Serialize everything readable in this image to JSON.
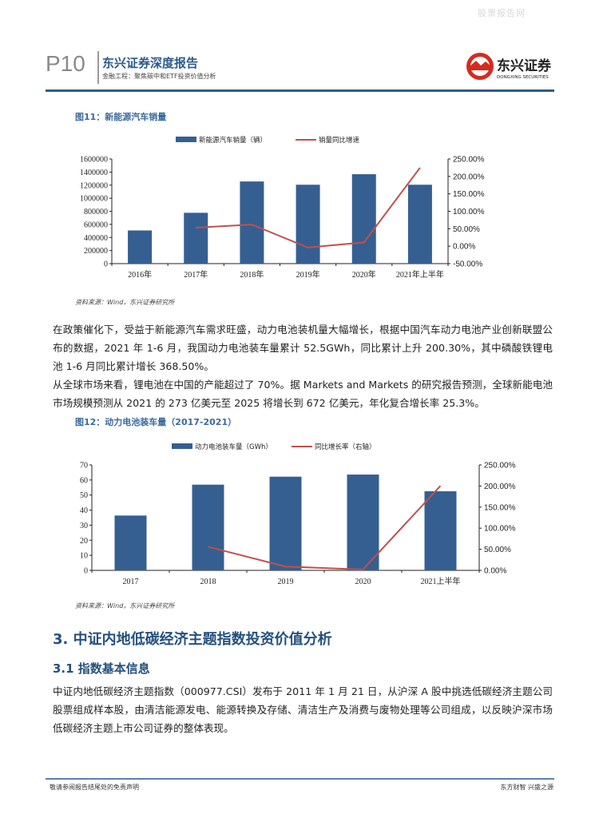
{
  "watermark": "股票报告网",
  "header": {
    "page": "P10",
    "title": "东兴证券深度报告",
    "subtitle": "金融工程：聚焦碳中和ETF投资价值分析",
    "logo_text": "东兴证券",
    "logo_sub": "DONGXING SECURITIES"
  },
  "figure11": {
    "title": "图11：新能源汽车销量",
    "source": "资料来源：Wind，东兴证券研究所"
  },
  "paragraph1": "在政策催化下，受益于新能源汽车需求旺盛，动力电池装机量大幅增长，根据中国汽车动力电池产业创新联盟公布的数据，2021 年 1-6 月，我国动力电池装车量累计 52.5GWh，同比累计上升 200.30%，其中磷酸铁锂电池 1-6 月同比累计增长 368.50%。",
  "paragraph2": "从全球市场来看，锂电池在中国的产能超过了 70%。据 Markets and Markets 的研究报告预测，全球新能电池市场规模预测从 2021 的 273 亿美元至 2025 将增长到 672 亿美元，年化复合增长率 25.3%。",
  "figure12": {
    "title": "图12：动力电池装车量（2017-2021）",
    "source": "资料来源：Wind，东兴证券研究所"
  },
  "section3": {
    "title": "3. 中证内地低碳经济主题指数投资价值分析",
    "sub_title": "3.1 指数基本信息",
    "text": "中证内地低碳经济主题指数（000977.CSI）发布于 2011 年 1 月 21 日，从沪深 A 股中挑选低碳经济主题公司股票组成样本股，由清洁能源发电、能源转换及存储、清洁生产及消费与废物处理等公司组成，以反映沪深市场低碳经济主题上市公司证券的整体表现。"
  },
  "footer": {
    "left": "敬请参阅报告结尾处的免责声明",
    "right": "东方财智 兴盛之源"
  },
  "colors": {
    "bar": "#355f91",
    "line": "#c0504d",
    "accent": "#2a5a8c"
  },
  "chart_data": [
    {
      "type": "bar+line",
      "categories": [
        "2016年",
        "2017年",
        "2018年",
        "2019年",
        "2020年",
        "2021年上半年"
      ],
      "series": [
        {
          "name": "新能源汽车销量（辆）",
          "type": "bar",
          "axis": "left",
          "values": [
            507000,
            777000,
            1256000,
            1206000,
            1367000,
            1206000
          ]
        },
        {
          "name": "销量同比增速",
          "type": "line",
          "axis": "right",
          "values": [
            null,
            53.0,
            62.0,
            -4.0,
            11.0,
            225.0
          ]
        }
      ],
      "left_ticks": [
        "0",
        "200000",
        "400000",
        "600000",
        "800000",
        "1000000",
        "1200000",
        "1400000",
        "1600000"
      ],
      "ylim": [
        0,
        1600000
      ],
      "right_ticks": [
        "-50.00%",
        "0.00%",
        "50.00%",
        "100.00%",
        "150.00%",
        "200.00%",
        "250.00%"
      ],
      "y2lim": [
        -50,
        250
      ],
      "legend": "top",
      "grid": false
    },
    {
      "type": "bar+line",
      "categories": [
        "2017",
        "2018",
        "2019",
        "2020",
        "2021上半年"
      ],
      "series": [
        {
          "name": "动力电池装车量（GWh）",
          "type": "bar",
          "axis": "left",
          "values": [
            36.4,
            56.9,
            62.2,
            63.6,
            52.5
          ]
        },
        {
          "name": "同比增长率（右轴）",
          "type": "line",
          "axis": "right",
          "values": [
            null,
            56.0,
            9.0,
            2.0,
            200.3
          ]
        }
      ],
      "left_ticks": [
        "0",
        "10",
        "20",
        "30",
        "40",
        "50",
        "60",
        "70"
      ],
      "ylim": [
        0,
        70
      ],
      "right_ticks": [
        "0.00%",
        "50.00%",
        "100.00%",
        "150.00%",
        "200.00%",
        "250.00%"
      ],
      "y2lim": [
        0,
        250
      ],
      "legend": "top",
      "grid": false
    }
  ]
}
